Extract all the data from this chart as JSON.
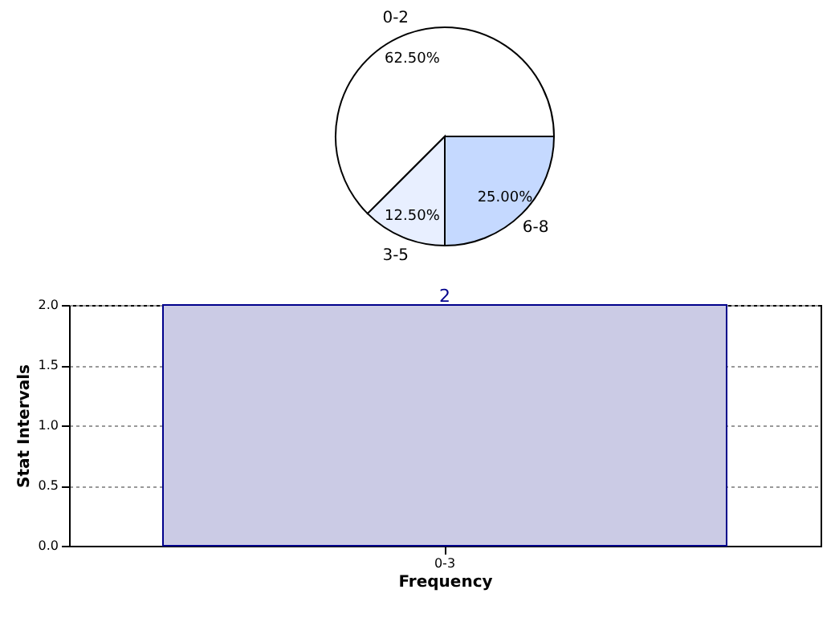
{
  "chart_data": [
    {
      "type": "pie",
      "categories": [
        "0-2",
        "3-5",
        "6-8"
      ],
      "values": [
        62.5,
        12.5,
        25
      ],
      "colors": [
        "#ffffff",
        "#e8efff",
        "#c5d9ff"
      ],
      "value_labels": [
        "62.50%",
        "12.50%",
        "25.00%"
      ],
      "legend": false
    },
    {
      "type": "bar",
      "categories": [
        "0-3"
      ],
      "values": [
        2
      ],
      "color": "#cbcbe5",
      "xlabel": "Frequency",
      "ylabel": "Stat Intervals",
      "ylim": [
        0,
        2
      ],
      "yticks": [
        {
          "value": 0,
          "label": "0.0"
        },
        {
          "value": 0.5,
          "label": "0.5"
        },
        {
          "value": 1,
          "label": "1.0"
        },
        {
          "value": 1.5,
          "label": "1.5"
        },
        {
          "value": 2,
          "label": "2.0"
        }
      ],
      "grid": true,
      "data_labels": true,
      "legend": false
    }
  ]
}
